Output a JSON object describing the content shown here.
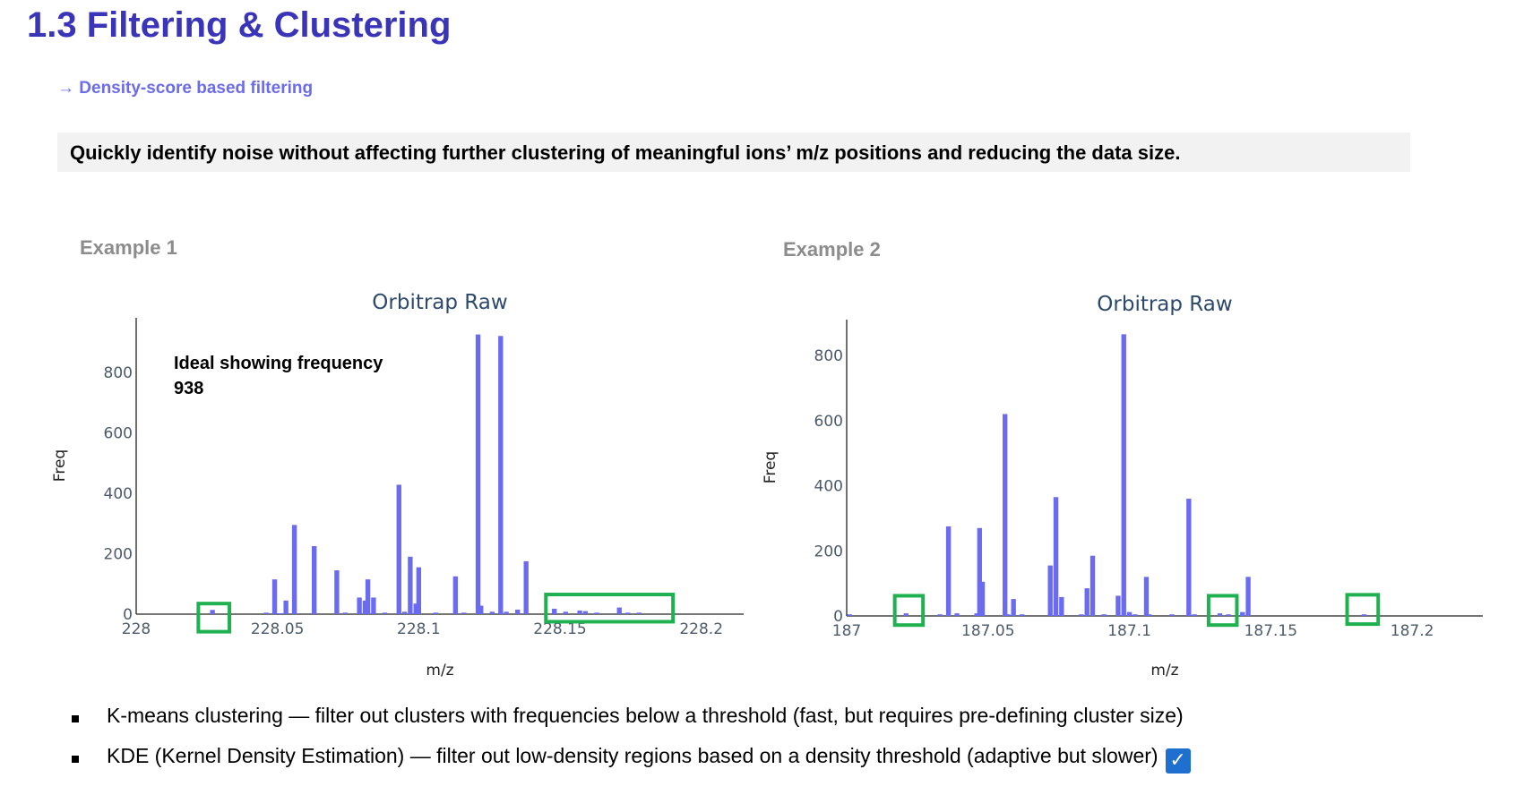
{
  "page": {
    "title": "1.3 Filtering & Clustering",
    "subtitle": "→ Density-score based filtering",
    "banner": "Quickly identify noise without affecting further clustering of meaningful ions’ m/z positions and reducing the data size.",
    "example1_label": "Example 1",
    "example2_label": "Example 2",
    "annotation_line1": "Ideal showing frequency",
    "annotation_line2": "938",
    "bullets": [
      "K-means clustering — filter out clusters with frequencies below a threshold (fast, but requires pre-defining cluster size)",
      "KDE (Kernel Density Estimation) — filter out low-density regions based on a density threshold (adaptive but slower)"
    ],
    "check_icon": "✓",
    "colors": {
      "title": "#3a34b8",
      "bar": "#6b6bf2",
      "highlight": "#1fb04f"
    }
  },
  "chart_data": [
    {
      "type": "bar",
      "title": "Orbitrap Raw",
      "xlabel": "m/z",
      "ylabel": "Freq",
      "xlim": [
        228.0,
        228.215
      ],
      "ylim": [
        0,
        980
      ],
      "xticks": [
        228.0,
        228.05,
        228.1,
        228.15,
        228.2
      ],
      "xticklabels": [
        "228",
        "228.05",
        "228.1",
        "228.15",
        "228.2"
      ],
      "yticks": [
        0,
        200,
        400,
        600,
        800
      ],
      "yticklabels": [
        "0",
        "200",
        "400",
        "600",
        "800"
      ],
      "bar_width": 0.0017,
      "x": [
        228.027,
        228.046,
        228.049,
        228.051,
        228.053,
        228.056,
        228.063,
        228.071,
        228.074,
        228.079,
        228.081,
        228.082,
        228.084,
        228.088,
        228.093,
        228.095,
        228.097,
        228.099,
        228.1,
        228.106,
        228.113,
        228.116,
        228.121,
        228.122,
        228.126,
        228.129,
        228.131,
        228.135,
        228.138,
        228.148,
        228.152,
        228.157,
        228.159,
        228.163,
        228.171,
        228.174,
        228.178
      ],
      "y": [
        14,
        5,
        115,
        3,
        45,
        295,
        225,
        145,
        5,
        55,
        45,
        115,
        55,
        5,
        428,
        8,
        190,
        35,
        155,
        5,
        125,
        5,
        925,
        28,
        8,
        920,
        8,
        15,
        175,
        18,
        8,
        12,
        10,
        5,
        22,
        5,
        5
      ],
      "highlights": [
        {
          "x0": 228.022,
          "x1": 228.033,
          "y0": -58,
          "y1": 35
        },
        {
          "x0": 228.145,
          "x1": 228.19,
          "y0": -25,
          "y1": 65
        }
      ]
    },
    {
      "type": "bar",
      "title": "Orbitrap Raw",
      "xlabel": "m/z",
      "ylabel": "Freq",
      "xlim": [
        187.0,
        187.225
      ],
      "ylim": [
        0,
        910
      ],
      "xticks": [
        187.0,
        187.05,
        187.1,
        187.15,
        187.2
      ],
      "xticklabels": [
        "187",
        "187.05",
        "187.1",
        "187.15",
        "187.2"
      ],
      "yticks": [
        0,
        200,
        400,
        600,
        800
      ],
      "yticklabels": [
        "0",
        "200",
        "400",
        "600",
        "800"
      ],
      "bar_width": 0.0017,
      "x": [
        187.001,
        187.021,
        187.033,
        187.036,
        187.039,
        187.046,
        187.047,
        187.048,
        187.056,
        187.057,
        187.059,
        187.062,
        187.072,
        187.074,
        187.076,
        187.083,
        187.085,
        187.087,
        187.091,
        187.096,
        187.098,
        187.1,
        187.102,
        187.106,
        187.107,
        187.115,
        187.121,
        187.123,
        187.132,
        187.135,
        187.14,
        187.142,
        187.183
      ],
      "y": [
        5,
        8,
        5,
        275,
        8,
        8,
        270,
        105,
        620,
        5,
        52,
        5,
        155,
        365,
        58,
        5,
        85,
        185,
        5,
        62,
        865,
        12,
        5,
        120,
        5,
        5,
        360,
        5,
        8,
        5,
        12,
        120,
        5
      ],
      "highlights": [
        {
          "x0": 187.017,
          "x1": 187.027,
          "y0": -28,
          "y1": 62
        },
        {
          "x0": 187.128,
          "x1": 187.138,
          "y0": -28,
          "y1": 62
        },
        {
          "x0": 187.177,
          "x1": 187.188,
          "y0": -25,
          "y1": 65
        }
      ]
    }
  ]
}
